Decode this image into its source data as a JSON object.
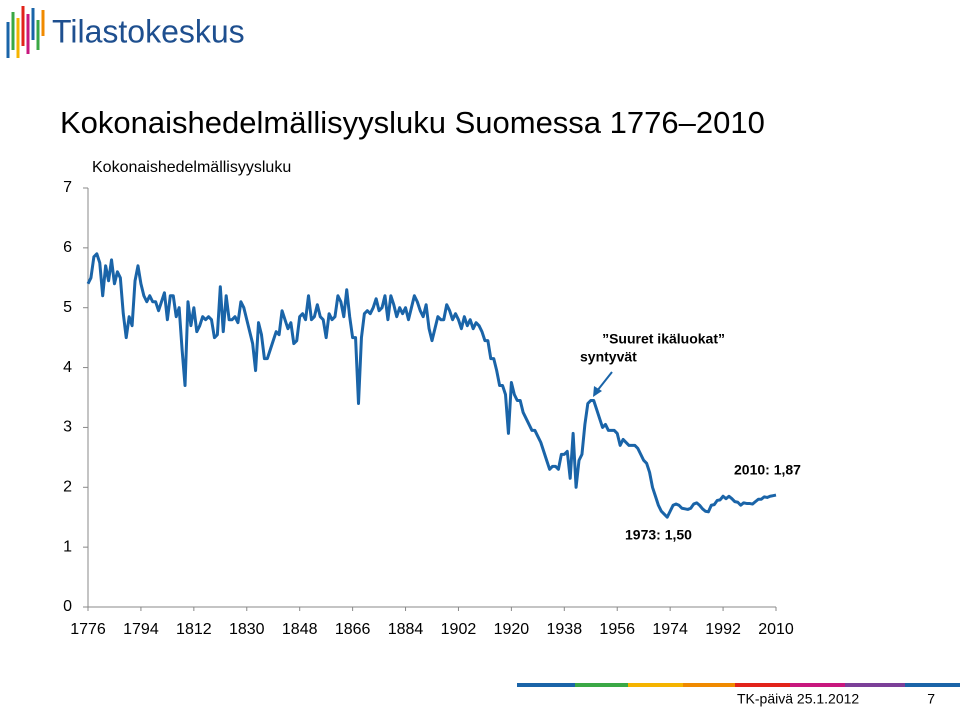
{
  "header": {
    "logo": "Tilastokeskus"
  },
  "footer": {
    "event": "TK-päivä 25.1.2012",
    "page": "7"
  },
  "chart_data": {
    "type": "line",
    "title": "Kokonaishedelmällisyysluku Suomessa 1776–2010",
    "y_label": "Kokonaishedelmällisyysluku",
    "color": "#1a64a8",
    "xlim": [
      1776,
      2010
    ],
    "xticks": [
      1776,
      1794,
      1812,
      1830,
      1848,
      1866,
      1884,
      1902,
      1920,
      1938,
      1956,
      1974,
      1992,
      2010
    ],
    "ylim": [
      0,
      7
    ],
    "yticks": [
      0,
      1,
      2,
      3,
      4,
      5,
      6,
      7
    ],
    "annotations": [
      {
        "lines": [
          "”Suuret ikäluokat”",
          "syntyvät"
        ]
      },
      {
        "text": "1973: 1,50"
      },
      {
        "text": "2010: 1,87"
      }
    ],
    "x": [
      1776,
      1777,
      1778,
      1779,
      1780,
      1781,
      1782,
      1783,
      1784,
      1785,
      1786,
      1787,
      1788,
      1789,
      1790,
      1791,
      1792,
      1793,
      1794,
      1795,
      1796,
      1797,
      1798,
      1799,
      1800,
      1801,
      1802,
      1803,
      1804,
      1805,
      1806,
      1807,
      1808,
      1809,
      1810,
      1811,
      1812,
      1813,
      1814,
      1815,
      1816,
      1817,
      1818,
      1819,
      1820,
      1821,
      1822,
      1823,
      1824,
      1825,
      1826,
      1827,
      1828,
      1829,
      1830,
      1831,
      1832,
      1833,
      1834,
      1835,
      1836,
      1837,
      1838,
      1839,
      1840,
      1841,
      1842,
      1843,
      1844,
      1845,
      1846,
      1847,
      1848,
      1849,
      1850,
      1851,
      1852,
      1853,
      1854,
      1855,
      1856,
      1857,
      1858,
      1859,
      1860,
      1861,
      1862,
      1863,
      1864,
      1865,
      1866,
      1867,
      1868,
      1869,
      1870,
      1871,
      1872,
      1873,
      1874,
      1875,
      1876,
      1877,
      1878,
      1879,
      1880,
      1881,
      1882,
      1883,
      1884,
      1885,
      1886,
      1887,
      1888,
      1889,
      1890,
      1891,
      1892,
      1893,
      1894,
      1895,
      1896,
      1897,
      1898,
      1899,
      1900,
      1901,
      1902,
      1903,
      1904,
      1905,
      1906,
      1907,
      1908,
      1909,
      1910,
      1911,
      1912,
      1913,
      1914,
      1915,
      1916,
      1917,
      1918,
      1919,
      1920,
      1921,
      1922,
      1923,
      1924,
      1925,
      1926,
      1927,
      1928,
      1929,
      1930,
      1931,
      1932,
      1933,
      1934,
      1935,
      1936,
      1937,
      1938,
      1939,
      1940,
      1941,
      1942,
      1943,
      1944,
      1945,
      1946,
      1947,
      1948,
      1949,
      1950,
      1951,
      1952,
      1953,
      1954,
      1955,
      1956,
      1957,
      1958,
      1959,
      1960,
      1961,
      1962,
      1963,
      1964,
      1965,
      1966,
      1967,
      1968,
      1969,
      1970,
      1971,
      1972,
      1973,
      1974,
      1975,
      1976,
      1977,
      1978,
      1979,
      1980,
      1981,
      1982,
      1983,
      1984,
      1985,
      1986,
      1987,
      1988,
      1989,
      1990,
      1991,
      1992,
      1993,
      1994,
      1995,
      1996,
      1997,
      1998,
      1999,
      2000,
      2001,
      2002,
      2003,
      2004,
      2005,
      2006,
      2007,
      2008,
      2009,
      2010
    ],
    "values": [
      5.4,
      5.5,
      5.85,
      5.9,
      5.75,
      5.2,
      5.7,
      5.45,
      5.8,
      5.4,
      5.6,
      5.5,
      4.9,
      4.5,
      4.85,
      4.7,
      5.45,
      5.7,
      5.4,
      5.2,
      5.1,
      5.2,
      5.1,
      5.1,
      4.95,
      5.1,
      5.25,
      4.8,
      5.2,
      5.2,
      4.85,
      5.0,
      4.3,
      3.7,
      5.1,
      4.7,
      5.0,
      4.6,
      4.7,
      4.85,
      4.8,
      4.85,
      4.8,
      4.5,
      4.55,
      5.35,
      4.6,
      5.2,
      4.8,
      4.8,
      4.85,
      4.75,
      5.1,
      5.0,
      4.8,
      4.6,
      4.4,
      3.95,
      4.75,
      4.55,
      4.15,
      4.15,
      4.3,
      4.45,
      4.6,
      4.55,
      4.95,
      4.8,
      4.65,
      4.75,
      4.4,
      4.45,
      4.85,
      4.9,
      4.8,
      5.2,
      4.8,
      4.85,
      5.05,
      4.85,
      4.8,
      4.5,
      4.9,
      4.8,
      4.85,
      5.2,
      5.1,
      4.85,
      5.3,
      4.85,
      4.5,
      4.5,
      3.4,
      4.5,
      4.9,
      4.95,
      4.9,
      5.0,
      5.15,
      4.95,
      5.0,
      5.2,
      4.8,
      5.2,
      5.05,
      4.85,
      5.0,
      4.9,
      5.0,
      4.8,
      5.0,
      5.2,
      5.1,
      4.95,
      4.85,
      5.05,
      4.65,
      4.45,
      4.65,
      4.85,
      4.8,
      4.8,
      5.05,
      4.95,
      4.8,
      4.9,
      4.8,
      4.65,
      4.85,
      4.7,
      4.8,
      4.65,
      4.75,
      4.7,
      4.6,
      4.45,
      4.45,
      4.15,
      4.15,
      3.95,
      3.7,
      3.7,
      3.55,
      2.9,
      3.75,
      3.55,
      3.45,
      3.45,
      3.25,
      3.15,
      3.05,
      2.95,
      2.95,
      2.85,
      2.75,
      2.6,
      2.45,
      2.3,
      2.35,
      2.35,
      2.3,
      2.55,
      2.55,
      2.6,
      2.15,
      2.9,
      2.0,
      2.45,
      2.55,
      3.05,
      3.4,
      3.45,
      3.45,
      3.3,
      3.15,
      3.0,
      3.05,
      2.95,
      2.95,
      2.95,
      2.9,
      2.7,
      2.8,
      2.75,
      2.7,
      2.7,
      2.7,
      2.65,
      2.55,
      2.45,
      2.4,
      2.25,
      2.0,
      1.85,
      1.7,
      1.6,
      1.55,
      1.5,
      1.6,
      1.7,
      1.72,
      1.7,
      1.65,
      1.64,
      1.63,
      1.65,
      1.72,
      1.74,
      1.7,
      1.64,
      1.6,
      1.59,
      1.7,
      1.71,
      1.78,
      1.79,
      1.85,
      1.81,
      1.85,
      1.81,
      1.76,
      1.75,
      1.7,
      1.74,
      1.73,
      1.73,
      1.72,
      1.76,
      1.8,
      1.8,
      1.84,
      1.83,
      1.85,
      1.86,
      1.87
    ]
  }
}
